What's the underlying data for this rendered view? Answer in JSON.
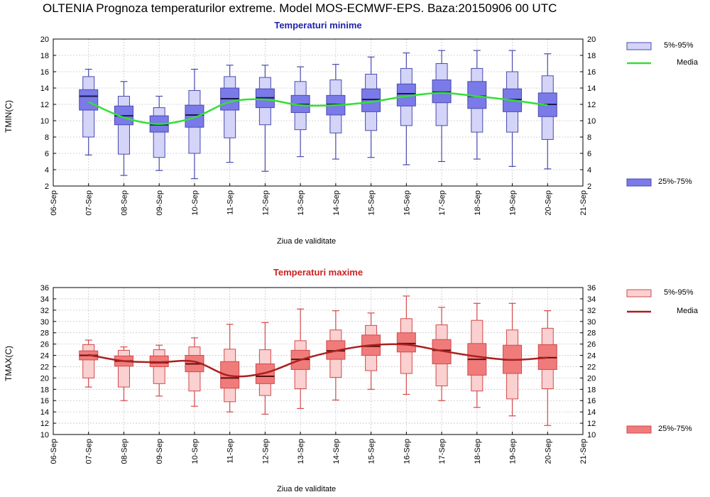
{
  "page": {
    "main_title": "OLTENIA  Prognoza temperaturilor extreme.  Model MOS-ECMWF-EPS. Baza:20150906 00 UTC"
  },
  "colors": {
    "min_box": "#7a7ae8",
    "min_box_light": "#d4d4f8",
    "min_whisker": "#4a4ab0",
    "min_median": "#1a1a50",
    "min_mean": "#33e033",
    "max_box": "#f07b7b",
    "max_box_light": "#fad0d0",
    "max_whisker": "#d24a4a",
    "max_median": "#5a1010",
    "max_mean": "#aa2020",
    "title_min": "#2222aa",
    "title_max": "#cc2222"
  },
  "chart_data": [
    {
      "type": "box",
      "title": "Temperaturi minime",
      "xlabel": "Ziua de validitate",
      "ylabel": "TMIN(C)",
      "ylim": [
        2,
        20
      ],
      "yticks": [
        2,
        4,
        6,
        8,
        10,
        12,
        14,
        16,
        18,
        20
      ],
      "categories": [
        "06-Sep",
        "07-Sep",
        "08-Sep",
        "09-Sep",
        "10-Sep",
        "11-Sep",
        "12-Sep",
        "13-Sep",
        "14-Sep",
        "15-Sep",
        "16-Sep",
        "17-Sep",
        "18-Sep",
        "19-Sep",
        "20-Sep",
        "21-Sep"
      ],
      "legend": {
        "outer_label": "5%-95%",
        "mean_label": "Media",
        "inner_label": "25%-75%"
      },
      "grid": true,
      "series": [
        {
          "day": "07-Sep",
          "min": 5.8,
          "p5": 8.0,
          "p25": 11.3,
          "median": 13.0,
          "p75": 13.8,
          "p95": 15.4,
          "max": 16.3,
          "mean": 12.3
        },
        {
          "day": "08-Sep",
          "min": 3.3,
          "p5": 5.9,
          "p25": 9.5,
          "median": 10.6,
          "p75": 11.8,
          "p95": 13.0,
          "max": 14.8,
          "mean": 10.4
        },
        {
          "day": "09-Sep",
          "min": 3.9,
          "p5": 5.5,
          "p25": 8.6,
          "median": 9.5,
          "p75": 10.6,
          "p95": 11.6,
          "max": 13.0,
          "mean": 9.6
        },
        {
          "day": "10-Sep",
          "min": 2.9,
          "p5": 6.0,
          "p25": 9.2,
          "median": 10.7,
          "p75": 11.9,
          "p95": 13.7,
          "max": 16.3,
          "mean": 10.4
        },
        {
          "day": "11-Sep",
          "min": 4.9,
          "p5": 7.9,
          "p25": 11.3,
          "median": 12.7,
          "p75": 14.0,
          "p95": 15.4,
          "max": 16.8,
          "mean": 12.3
        },
        {
          "day": "12-Sep",
          "min": 3.8,
          "p5": 9.5,
          "p25": 11.6,
          "median": 12.8,
          "p75": 13.9,
          "p95": 15.3,
          "max": 16.8,
          "mean": 12.6
        },
        {
          "day": "13-Sep",
          "min": 5.6,
          "p5": 8.9,
          "p25": 11.0,
          "median": 12.0,
          "p75": 13.1,
          "p95": 14.8,
          "max": 16.6,
          "mean": 11.9
        },
        {
          "day": "14-Sep",
          "min": 5.3,
          "p5": 8.5,
          "p25": 10.7,
          "median": 12.0,
          "p75": 13.1,
          "p95": 15.0,
          "max": 16.9,
          "mean": 11.9
        },
        {
          "day": "15-Sep",
          "min": 5.5,
          "p5": 8.8,
          "p25": 11.1,
          "median": 12.6,
          "p75": 13.9,
          "p95": 15.7,
          "max": 17.8,
          "mean": 12.3
        },
        {
          "day": "16-Sep",
          "min": 4.6,
          "p5": 9.4,
          "p25": 11.8,
          "median": 13.3,
          "p75": 14.5,
          "p95": 16.4,
          "max": 18.3,
          "mean": 13.0
        },
        {
          "day": "17-Sep",
          "min": 5.0,
          "p5": 9.4,
          "p25": 12.2,
          "median": 13.5,
          "p75": 15.0,
          "p95": 17.0,
          "max": 18.6,
          "mean": 13.4
        },
        {
          "day": "18-Sep",
          "min": 5.3,
          "p5": 8.6,
          "p25": 11.5,
          "median": 13.0,
          "p75": 14.8,
          "p95": 16.4,
          "max": 18.6,
          "mean": 13.0
        },
        {
          "day": "19-Sep",
          "min": 4.4,
          "p5": 8.6,
          "p25": 11.1,
          "median": 12.6,
          "p75": 13.9,
          "p95": 16.0,
          "max": 18.6,
          "mean": 12.5
        },
        {
          "day": "20-Sep",
          "min": 4.1,
          "p5": 7.7,
          "p25": 10.5,
          "median": 12.0,
          "p75": 13.4,
          "p95": 15.5,
          "max": 18.2,
          "mean": 11.9
        }
      ]
    },
    {
      "type": "box",
      "title": "Temperaturi maxime",
      "xlabel": "Ziua de validitate",
      "ylabel": "TMAX(C)",
      "ylim": [
        10,
        36
      ],
      "yticks": [
        10,
        12,
        14,
        16,
        18,
        20,
        22,
        24,
        26,
        28,
        30,
        32,
        34,
        36
      ],
      "categories": [
        "06-Sep",
        "07-Sep",
        "08-Sep",
        "09-Sep",
        "10-Sep",
        "11-Sep",
        "12-Sep",
        "13-Sep",
        "14-Sep",
        "15-Sep",
        "16-Sep",
        "17-Sep",
        "18-Sep",
        "19-Sep",
        "20-Sep",
        "21-Sep"
      ],
      "legend": {
        "outer_label": "5%-95%",
        "mean_label": "Media",
        "inner_label": "25%-75%"
      },
      "grid": true,
      "series": [
        {
          "day": "07-Sep",
          "min": 18.4,
          "p5": 20.0,
          "p25": 23.2,
          "median": 24.0,
          "p75": 24.8,
          "p95": 25.9,
          "max": 26.7,
          "mean": 24.1
        },
        {
          "day": "08-Sep",
          "min": 16.0,
          "p5": 18.4,
          "p25": 22.1,
          "median": 23.0,
          "p75": 23.9,
          "p95": 24.9,
          "max": 25.5,
          "mean": 23.0
        },
        {
          "day": "09-Sep",
          "min": 16.8,
          "p5": 19.0,
          "p25": 22.0,
          "median": 22.7,
          "p75": 23.9,
          "p95": 25.0,
          "max": 25.8,
          "mean": 22.8
        },
        {
          "day": "10-Sep",
          "min": 15.0,
          "p5": 17.7,
          "p25": 21.1,
          "median": 22.5,
          "p75": 24.0,
          "p95": 25.5,
          "max": 27.1,
          "mean": 22.9
        },
        {
          "day": "11-Sep",
          "min": 14.0,
          "p5": 15.8,
          "p25": 18.2,
          "median": 20.0,
          "p75": 22.9,
          "p95": 25.1,
          "max": 29.5,
          "mean": 20.4
        },
        {
          "day": "12-Sep",
          "min": 13.6,
          "p5": 16.9,
          "p25": 19.0,
          "median": 20.3,
          "p75": 22.5,
          "p95": 25.0,
          "max": 29.8,
          "mean": 20.9
        },
        {
          "day": "13-Sep",
          "min": 14.6,
          "p5": 18.1,
          "p25": 21.5,
          "median": 23.3,
          "p75": 24.9,
          "p95": 26.6,
          "max": 32.2,
          "mean": 23.2
        },
        {
          "day": "14-Sep",
          "min": 16.1,
          "p5": 20.1,
          "p25": 23.3,
          "median": 24.8,
          "p75": 26.6,
          "p95": 28.5,
          "max": 31.9,
          "mean": 24.8
        },
        {
          "day": "15-Sep",
          "min": 18.0,
          "p5": 21.3,
          "p25": 24.0,
          "median": 25.6,
          "p75": 27.6,
          "p95": 29.3,
          "max": 31.5,
          "mean": 25.8
        },
        {
          "day": "16-Sep",
          "min": 17.1,
          "p5": 20.8,
          "p25": 24.6,
          "median": 26.1,
          "p75": 28.0,
          "p95": 30.5,
          "max": 34.5,
          "mean": 25.9
        },
        {
          "day": "17-Sep",
          "min": 16.0,
          "p5": 18.6,
          "p25": 22.5,
          "median": 24.9,
          "p75": 26.8,
          "p95": 29.4,
          "max": 32.5,
          "mean": 24.8
        },
        {
          "day": "18-Sep",
          "min": 14.8,
          "p5": 17.7,
          "p25": 20.5,
          "median": 23.3,
          "p75": 26.1,
          "p95": 30.2,
          "max": 33.2,
          "mean": 23.8
        },
        {
          "day": "19-Sep",
          "min": 13.3,
          "p5": 16.3,
          "p25": 20.8,
          "median": 23.2,
          "p75": 25.8,
          "p95": 28.5,
          "max": 33.2,
          "mean": 23.2
        },
        {
          "day": "20-Sep",
          "min": 11.6,
          "p5": 18.1,
          "p25": 21.5,
          "median": 23.6,
          "p75": 25.9,
          "p95": 28.8,
          "max": 31.9,
          "mean": 23.6
        }
      ]
    }
  ]
}
